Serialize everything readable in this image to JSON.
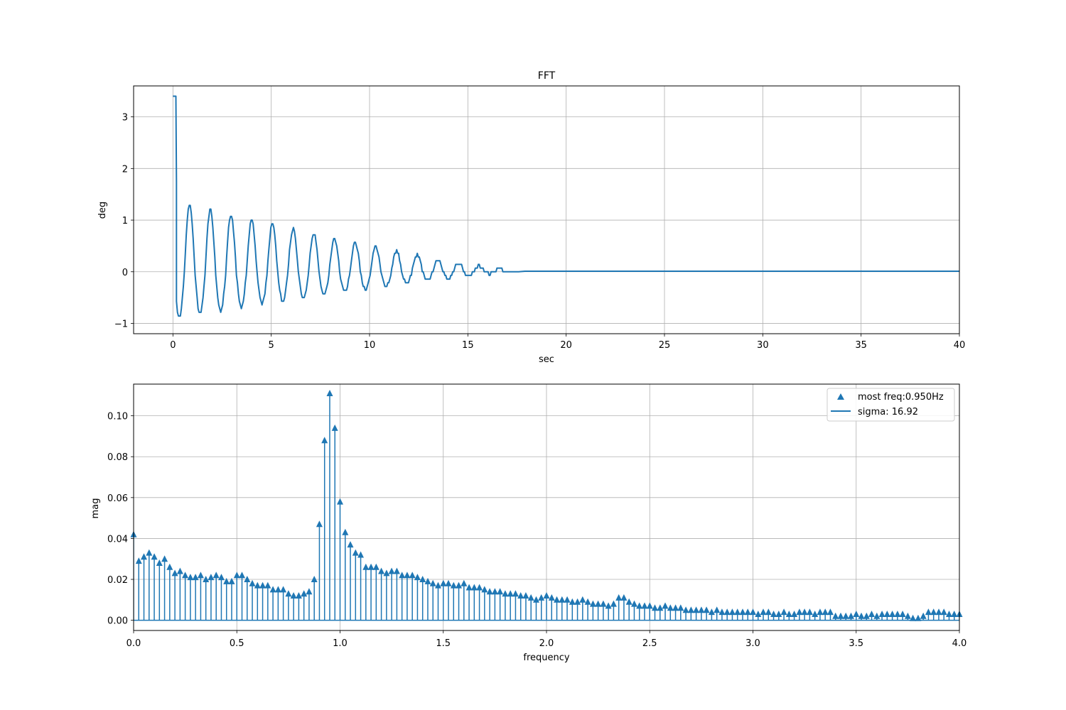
{
  "chart_data": [
    {
      "type": "line",
      "title": "FFT",
      "xlabel": "sec",
      "ylabel": "deg",
      "xlim": [
        -2,
        40
      ],
      "ylim": [
        -1.2,
        3.6
      ],
      "xticks": [
        0,
        5,
        10,
        15,
        20,
        25,
        30,
        35,
        40
      ],
      "yticks": [
        -1,
        0,
        1,
        2,
        3
      ],
      "xtick_labels": [
        "0",
        "5",
        "10",
        "15",
        "20",
        "25",
        "30",
        "35",
        "40"
      ],
      "ytick_labels": [
        "−1",
        "0",
        "1",
        "2",
        "3"
      ],
      "grid": true,
      "color": "#1f77b4",
      "signal": {
        "initial_value": 3.4,
        "initial_hold_until": 0.15,
        "start_value": 1.75,
        "decay_end": 17.6,
        "frequency_hz": 0.95,
        "trough_amplitude_start": 0.9,
        "peak_amplitude_start": 1.35,
        "settled_value": 0.01,
        "end_x": 40
      }
    },
    {
      "type": "stem",
      "title": "",
      "xlabel": "frequency",
      "ylabel": "mag",
      "xlim": [
        0.0,
        4.0
      ],
      "ylim": [
        -0.005,
        0.1155
      ],
      "xticks": [
        0.0,
        0.5,
        1.0,
        1.5,
        2.0,
        2.5,
        3.0,
        3.5,
        4.0
      ],
      "yticks": [
        0.0,
        0.02,
        0.04,
        0.06,
        0.08,
        0.1
      ],
      "xtick_labels": [
        "0.0",
        "0.5",
        "1.0",
        "1.5",
        "2.0",
        "2.5",
        "3.0",
        "3.5",
        "4.0"
      ],
      "ytick_labels": [
        "0.00",
        "0.02",
        "0.04",
        "0.06",
        "0.08",
        "0.10"
      ],
      "grid": true,
      "color": "#1f77b4",
      "marker": "triangle-up",
      "legend_position": "top-right",
      "legend": [
        "most freq:0.950Hz",
        "sigma: 16.92"
      ],
      "x_step": 0.025,
      "x": [
        0.0,
        0.025,
        0.05,
        0.075,
        0.1,
        0.125,
        0.15,
        0.175,
        0.2,
        0.225,
        0.25,
        0.275,
        0.3,
        0.325,
        0.35,
        0.375,
        0.4,
        0.425,
        0.45,
        0.475,
        0.5,
        0.525,
        0.55,
        0.575,
        0.6,
        0.625,
        0.65,
        0.675,
        0.7,
        0.725,
        0.75,
        0.775,
        0.8,
        0.825,
        0.85,
        0.875,
        0.9,
        0.925,
        0.95,
        0.975,
        1.0,
        1.025,
        1.05,
        1.075,
        1.1,
        1.125,
        1.15,
        1.175,
        1.2,
        1.225,
        1.25,
        1.275,
        1.3,
        1.325,
        1.35,
        1.375,
        1.4,
        1.425,
        1.45,
        1.475,
        1.5,
        1.525,
        1.55,
        1.575,
        1.6,
        1.625,
        1.65,
        1.675,
        1.7,
        1.725,
        1.75,
        1.775,
        1.8,
        1.825,
        1.85,
        1.875,
        1.9,
        1.925,
        1.95,
        1.975,
        2.0,
        2.025,
        2.05,
        2.075,
        2.1,
        2.125,
        2.15,
        2.175,
        2.2,
        2.225,
        2.25,
        2.275,
        2.3,
        2.325,
        2.35,
        2.375,
        2.4,
        2.425,
        2.45,
        2.475,
        2.5,
        2.525,
        2.55,
        2.575,
        2.6,
        2.625,
        2.65,
        2.675,
        2.7,
        2.725,
        2.75,
        2.775,
        2.8,
        2.825,
        2.85,
        2.875,
        2.9,
        2.925,
        2.95,
        2.975,
        3.0,
        3.025,
        3.05,
        3.075,
        3.1,
        3.125,
        3.15,
        3.175,
        3.2,
        3.225,
        3.25,
        3.275,
        3.3,
        3.325,
        3.35,
        3.375,
        3.4,
        3.425,
        3.45,
        3.475,
        3.5,
        3.525,
        3.55,
        3.575,
        3.6,
        3.625,
        3.65,
        3.675,
        3.7,
        3.725,
        3.75,
        3.775,
        3.8,
        3.825,
        3.85,
        3.875,
        3.9,
        3.925,
        3.95,
        3.975,
        4.0
      ],
      "values": [
        0.042,
        0.029,
        0.031,
        0.033,
        0.031,
        0.028,
        0.03,
        0.026,
        0.023,
        0.024,
        0.022,
        0.021,
        0.021,
        0.022,
        0.02,
        0.021,
        0.022,
        0.021,
        0.019,
        0.019,
        0.022,
        0.022,
        0.02,
        0.018,
        0.017,
        0.017,
        0.017,
        0.015,
        0.015,
        0.015,
        0.013,
        0.012,
        0.012,
        0.013,
        0.014,
        0.02,
        0.047,
        0.088,
        0.111,
        0.094,
        0.058,
        0.043,
        0.037,
        0.033,
        0.032,
        0.026,
        0.026,
        0.026,
        0.024,
        0.023,
        0.024,
        0.024,
        0.022,
        0.022,
        0.022,
        0.021,
        0.02,
        0.019,
        0.018,
        0.017,
        0.018,
        0.018,
        0.017,
        0.017,
        0.018,
        0.016,
        0.016,
        0.016,
        0.015,
        0.014,
        0.014,
        0.014,
        0.013,
        0.013,
        0.013,
        0.012,
        0.012,
        0.011,
        0.01,
        0.011,
        0.012,
        0.011,
        0.01,
        0.01,
        0.01,
        0.009,
        0.009,
        0.01,
        0.009,
        0.008,
        0.008,
        0.008,
        0.007,
        0.008,
        0.011,
        0.011,
        0.009,
        0.008,
        0.007,
        0.007,
        0.007,
        0.006,
        0.006,
        0.007,
        0.006,
        0.006,
        0.006,
        0.005,
        0.005,
        0.005,
        0.005,
        0.005,
        0.004,
        0.005,
        0.004,
        0.004,
        0.004,
        0.004,
        0.004,
        0.004,
        0.004,
        0.003,
        0.004,
        0.004,
        0.003,
        0.003,
        0.004,
        0.003,
        0.003,
        0.004,
        0.004,
        0.004,
        0.003,
        0.004,
        0.004,
        0.004,
        0.002,
        0.002,
        0.002,
        0.002,
        0.003,
        0.002,
        0.002,
        0.003,
        0.002,
        0.003,
        0.003,
        0.003,
        0.003,
        0.003,
        0.002,
        0.001,
        0.001,
        0.002,
        0.004,
        0.004,
        0.004,
        0.004,
        0.003,
        0.003,
        0.003
      ]
    }
  ]
}
